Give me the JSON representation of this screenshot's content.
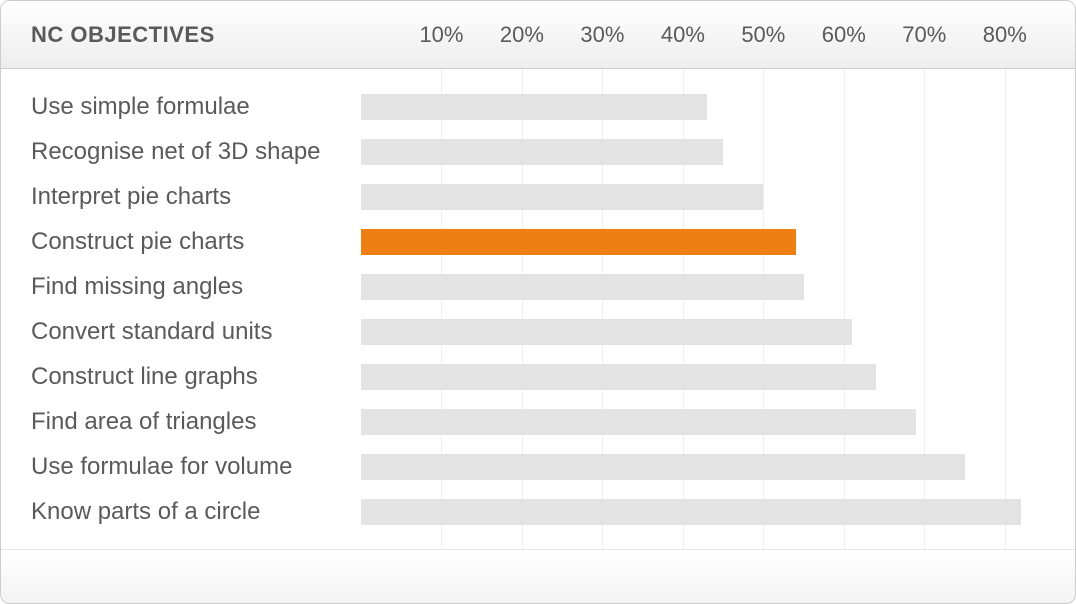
{
  "chart": {
    "type": "bar",
    "title": "NC OBJECTIVES",
    "title_fontsize": 22,
    "title_color": "#5a5a5a",
    "label_fontsize": 24,
    "label_color": "#5a5a5a",
    "label_column_width": 330,
    "bar_area_right_pad": 30,
    "xlim": [
      0,
      85
    ],
    "xticks": [
      10,
      20,
      30,
      40,
      50,
      60,
      70,
      80
    ],
    "xtick_suffix": "%",
    "grid_color": "#eeeeee",
    "default_bar_color": "#e3e3e3",
    "highlight_bar_color": "#ee8013",
    "background_color": "#ffffff",
    "card_border_color": "#cccccc",
    "header_gradient_top": "#ffffff",
    "header_gradient_bottom": "#ededed",
    "rows": [
      {
        "label": "Use simple formulae",
        "value": 43,
        "highlighted": false
      },
      {
        "label": "Recognise net of 3D shape",
        "value": 45,
        "highlighted": false
      },
      {
        "label": "Interpret pie charts",
        "value": 50,
        "highlighted": false
      },
      {
        "label": "Construct pie charts",
        "value": 54,
        "highlighted": true
      },
      {
        "label": "Find missing angles",
        "value": 55,
        "highlighted": false
      },
      {
        "label": "Convert standard units",
        "value": 61,
        "highlighted": false
      },
      {
        "label": "Construct line graphs",
        "value": 64,
        "highlighted": false
      },
      {
        "label": "Find area of triangles",
        "value": 69,
        "highlighted": false
      },
      {
        "label": "Use formulae for volume",
        "value": 75,
        "highlighted": false
      },
      {
        "label": "Know parts of a circle",
        "value": 82,
        "highlighted": false
      }
    ]
  }
}
